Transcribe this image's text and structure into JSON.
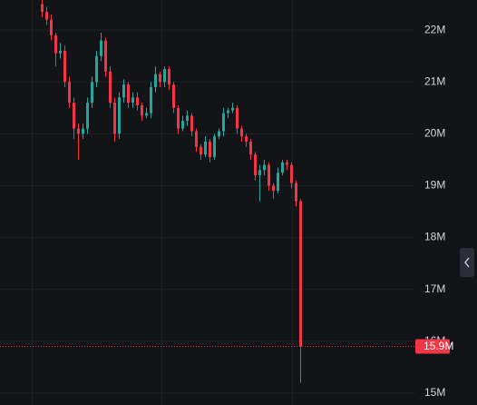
{
  "chart_data": {
    "type": "candlestick",
    "open": [
      22.5,
      22.35,
      22.2,
      21.9,
      21.55,
      21.6,
      21.0,
      20.6,
      20.1,
      20.0,
      20.1,
      20.6,
      21.0,
      21.5,
      21.8,
      21.2,
      20.6,
      20.0,
      20.7,
      20.95,
      20.6,
      20.7,
      20.55,
      20.35,
      20.4,
      20.9,
      21.15,
      21.0,
      21.25,
      20.95,
      20.5,
      20.1,
      20.25,
      20.35,
      20.05,
      19.75,
      19.6,
      19.85,
      19.55,
      19.95,
      20.05,
      20.4,
      20.45,
      20.5,
      20.1,
      19.95,
      19.85,
      19.6,
      19.2,
      19.3,
      19.4,
      19.0,
      18.9,
      19.25,
      19.45,
      19.4,
      19.05,
      18.7
    ],
    "high": [
      22.6,
      22.45,
      22.3,
      21.95,
      21.75,
      21.7,
      21.1,
      20.7,
      20.2,
      20.2,
      20.7,
      21.1,
      21.6,
      21.95,
      21.85,
      21.3,
      20.7,
      20.8,
      21.05,
      21.0,
      20.8,
      20.8,
      20.6,
      20.5,
      21.0,
      21.3,
      21.2,
      21.3,
      21.3,
      21.0,
      20.55,
      20.35,
      20.45,
      20.4,
      20.1,
      19.8,
      19.95,
      19.9,
      20.0,
      20.1,
      20.5,
      20.5,
      20.6,
      20.55,
      20.15,
      20.0,
      19.9,
      19.65,
      19.4,
      19.5,
      19.45,
      19.05,
      19.35,
      19.5,
      19.5,
      19.45,
      19.1,
      18.75
    ],
    "low": [
      22.25,
      22.1,
      21.8,
      21.3,
      21.45,
      20.9,
      20.5,
      19.9,
      19.5,
      19.9,
      20.0,
      20.5,
      20.9,
      21.4,
      21.1,
      20.5,
      19.85,
      19.9,
      20.6,
      20.5,
      20.5,
      20.45,
      20.25,
      20.3,
      20.3,
      20.8,
      20.9,
      20.9,
      20.85,
      20.4,
      20.0,
      20.05,
      20.15,
      19.95,
      19.65,
      19.5,
      19.55,
      19.45,
      19.5,
      19.9,
      19.95,
      20.3,
      20.4,
      20.0,
      19.85,
      19.75,
      19.5,
      19.1,
      18.7,
      19.2,
      18.9,
      18.75,
      18.85,
      19.2,
      19.3,
      18.95,
      18.6,
      15.2
    ],
    "close": [
      22.35,
      22.2,
      21.9,
      21.55,
      21.6,
      21.0,
      20.6,
      20.1,
      20.0,
      20.1,
      20.6,
      21.0,
      21.5,
      21.8,
      21.2,
      20.6,
      20.0,
      20.7,
      20.95,
      20.6,
      20.7,
      20.55,
      20.35,
      20.4,
      20.9,
      21.15,
      21.0,
      21.25,
      20.95,
      20.5,
      20.1,
      20.25,
      20.35,
      20.05,
      19.75,
      19.6,
      19.85,
      19.55,
      19.95,
      20.05,
      20.4,
      20.45,
      20.5,
      20.1,
      19.95,
      19.85,
      19.6,
      19.2,
      19.3,
      19.4,
      19.0,
      18.9,
      19.25,
      19.45,
      19.4,
      19.05,
      18.7,
      15.9
    ],
    "up_color": "#26a69a",
    "down_color": "#f23645",
    "ylim": [
      14.77,
      22.58
    ],
    "yticks": [
      {
        "value": 15,
        "label": "15M"
      },
      {
        "value": 16,
        "label": "16M"
      },
      {
        "value": 17,
        "label": "17M"
      },
      {
        "value": 18,
        "label": "18M"
      },
      {
        "value": 19,
        "label": "19M"
      },
      {
        "value": 20,
        "label": "20M"
      },
      {
        "value": 21,
        "label": "21M"
      },
      {
        "value": 22,
        "label": "22M"
      }
    ],
    "grid": true,
    "last_price": {
      "value": 15.9,
      "label": "15.9M"
    }
  }
}
